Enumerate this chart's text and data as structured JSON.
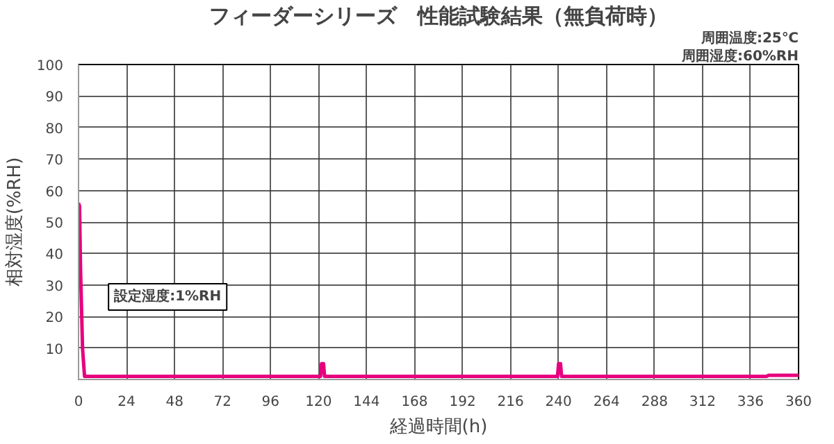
{
  "chart_data": {
    "type": "line",
    "title": "フィーダーシリーズ　性能試験結果（無負荷時）",
    "xlabel": "経過時間(h)",
    "ylabel": "相対湿度(%RH)",
    "annotations": [
      "周囲温度:25℃",
      "周囲湿度:60%RH",
      "設定湿度:1%RH"
    ],
    "series": [
      {
        "color": "#e6007e",
        "x": [
          0,
          0.5,
          1,
          2,
          3,
          60,
          121,
          121.5,
          122.5,
          123,
          180,
          239.5,
          240,
          241,
          241.5,
          300,
          344,
          345,
          360
        ],
        "values": [
          56,
          55,
          35,
          10,
          1,
          1,
          1,
          5,
          5,
          1,
          1,
          1,
          5,
          5,
          1,
          1,
          1,
          1.3,
          1.3
        ]
      }
    ],
    "xlim": [
      0,
      360
    ],
    "ylim": [
      0,
      100
    ],
    "xticks": [
      0,
      24,
      48,
      72,
      96,
      120,
      144,
      168,
      192,
      216,
      240,
      264,
      288,
      312,
      336,
      360
    ],
    "yticks": [
      {
        "value": 0,
        "label": null
      },
      10,
      20,
      30,
      40,
      50,
      60,
      70,
      80,
      90,
      100
    ],
    "grid": true
  }
}
